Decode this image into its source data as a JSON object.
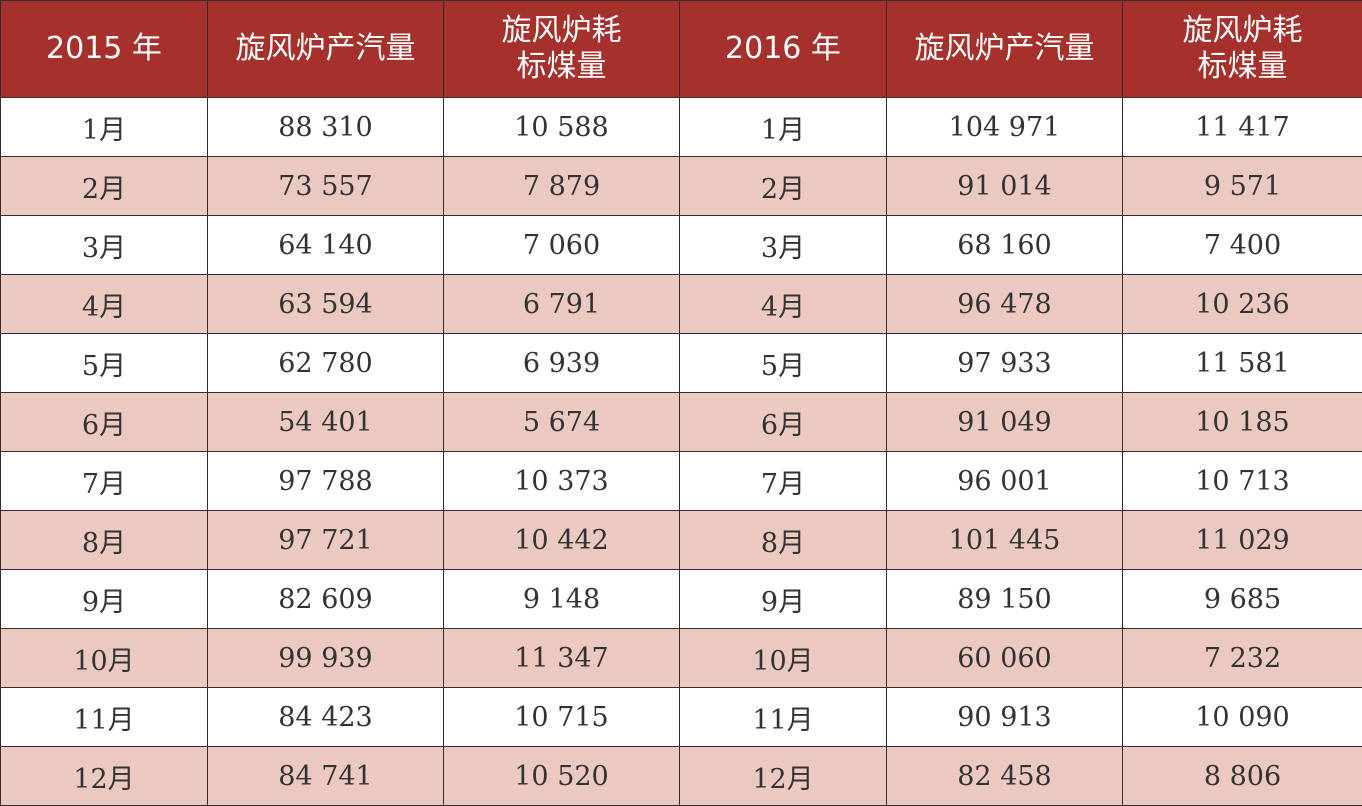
{
  "table": {
    "headers": [
      "2015 年",
      "旋风炉产汽量",
      "旋风炉耗\n标煤量",
      "2016 年",
      "旋风炉产汽量",
      "旋风炉耗\n标煤量"
    ],
    "rows": [
      [
        "1月",
        "88 310",
        "10 588",
        "1月",
        "104 971",
        "11 417"
      ],
      [
        "2月",
        "73 557",
        "7 879",
        "2月",
        "91 014",
        "9 571"
      ],
      [
        "3月",
        "64 140",
        "7 060",
        "3月",
        "68 160",
        "7 400"
      ],
      [
        "4月",
        "63 594",
        "6 791",
        "4月",
        "96 478",
        "10 236"
      ],
      [
        "5月",
        "62 780",
        "6 939",
        "5月",
        "97 933",
        "11 581"
      ],
      [
        "6月",
        "54 401",
        "5 674",
        "6月",
        "91 049",
        "10 185"
      ],
      [
        "7月",
        "97 788",
        "10 373",
        "7月",
        "96 001",
        "10 713"
      ],
      [
        "8月",
        "97 721",
        "10 442",
        "8月",
        "101 445",
        "11 029"
      ],
      [
        "9月",
        "82 609",
        "9 148",
        "9月",
        "89 150",
        "9 685"
      ],
      [
        "10月",
        "99 939",
        "11 347",
        "10月",
        "60 060",
        "7 232"
      ],
      [
        "11月",
        "84 423",
        "10 715",
        "11月",
        "90 913",
        "10 090"
      ],
      [
        "12月",
        "84 741",
        "10 520",
        "12月",
        "82 458",
        "8 806"
      ]
    ]
  },
  "colors": {
    "header_bg": "#a5302c",
    "header_text": "#ffffff",
    "row_alt_bg": "#ebc8c0",
    "row_bg": "#ffffff",
    "border": "#3a2a2a"
  }
}
